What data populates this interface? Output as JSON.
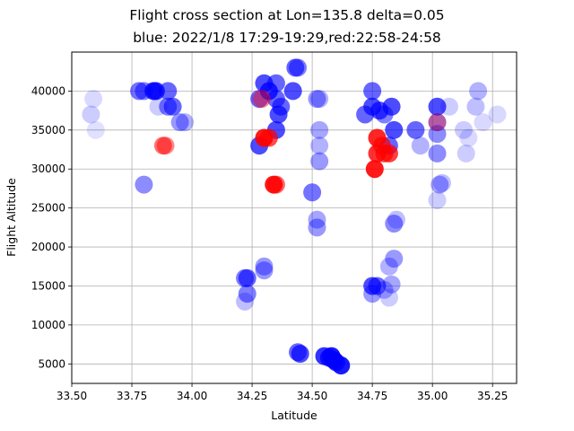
{
  "chart_data": {
    "type": "scatter",
    "title": "Flight cross section at Lon=135.8 delta=0.05",
    "subtitle": "blue: 2022/1/8 17:29-19:29,red:22:58-24:58",
    "xlabel": "Latitude",
    "ylabel": "Flight Altitude",
    "xlim": [
      33.5,
      35.35
    ],
    "ylim": [
      2500,
      45000
    ],
    "xticks": [
      "33.50",
      "33.75",
      "34.00",
      "34.25",
      "34.50",
      "34.75",
      "35.00",
      "35.25"
    ],
    "yticks": [
      "5000",
      "10000",
      "15000",
      "20000",
      "25000",
      "30000",
      "35000",
      "40000"
    ],
    "grid": true,
    "colors": {
      "blue": "#0000ff",
      "red": "#ff0000"
    },
    "series": [
      {
        "color": "#0000ff",
        "points": [
          [
            33.59,
            39000,
            0.15
          ],
          [
            33.58,
            37000,
            0.2
          ],
          [
            33.6,
            35000,
            0.12
          ],
          [
            33.78,
            40000,
            0.55
          ],
          [
            33.8,
            40000,
            0.5
          ],
          [
            33.84,
            40000,
            0.8
          ],
          [
            33.85,
            40000,
            0.8
          ],
          [
            33.9,
            40000,
            0.6
          ],
          [
            33.86,
            38000,
            0.2
          ],
          [
            33.9,
            38000,
            0.5
          ],
          [
            33.92,
            38000,
            0.6
          ],
          [
            33.95,
            36000,
            0.4
          ],
          [
            33.97,
            36000,
            0.3
          ],
          [
            33.8,
            28000,
            0.45
          ],
          [
            34.28,
            39000,
            0.6
          ],
          [
            34.3,
            41000,
            0.7
          ],
          [
            34.32,
            40000,
            0.8
          ],
          [
            34.35,
            41000,
            0.6
          ],
          [
            34.35,
            39000,
            0.6
          ],
          [
            34.36,
            37000,
            0.7
          ],
          [
            34.37,
            38000,
            0.6
          ],
          [
            34.42,
            40000,
            0.7
          ],
          [
            34.43,
            43000,
            0.6
          ],
          [
            34.44,
            43000,
            0.5
          ],
          [
            34.35,
            35000,
            0.7
          ],
          [
            34.28,
            33000,
            0.7
          ],
          [
            34.52,
            39000,
            0.4
          ],
          [
            34.53,
            39000,
            0.3
          ],
          [
            34.53,
            35000,
            0.35
          ],
          [
            34.53,
            33000,
            0.3
          ],
          [
            34.53,
            31000,
            0.4
          ],
          [
            34.5,
            27000,
            0.55
          ],
          [
            34.52,
            23500,
            0.35
          ],
          [
            34.52,
            22500,
            0.4
          ],
          [
            34.22,
            16000,
            0.5
          ],
          [
            34.23,
            16000,
            0.6
          ],
          [
            34.3,
            17500,
            0.4
          ],
          [
            34.3,
            17000,
            0.4
          ],
          [
            34.23,
            14000,
            0.5
          ],
          [
            34.22,
            13000,
            0.25
          ],
          [
            34.44,
            6500,
            0.6
          ],
          [
            34.45,
            6300,
            0.7
          ],
          [
            34.55,
            6000,
            0.8
          ],
          [
            34.57,
            5800,
            0.8
          ],
          [
            34.58,
            6000,
            0.9
          ],
          [
            34.6,
            5200,
            0.8
          ],
          [
            34.62,
            4800,
            0.9
          ],
          [
            34.59,
            5500,
            0.9
          ],
          [
            34.72,
            37000,
            0.6
          ],
          [
            34.75,
            40000,
            0.6
          ],
          [
            34.75,
            38000,
            0.7
          ],
          [
            34.78,
            37500,
            0.7
          ],
          [
            34.8,
            37000,
            0.5
          ],
          [
            34.83,
            38000,
            0.7
          ],
          [
            34.84,
            35000,
            0.7
          ],
          [
            34.82,
            33000,
            0.6
          ],
          [
            34.75,
            15000,
            0.7
          ],
          [
            34.77,
            15000,
            0.6
          ],
          [
            34.75,
            14000,
            0.4
          ],
          [
            34.8,
            14500,
            0.3
          ],
          [
            34.82,
            13500,
            0.2
          ],
          [
            34.83,
            15200,
            0.35
          ],
          [
            34.82,
            17500,
            0.3
          ],
          [
            34.84,
            18500,
            0.4
          ],
          [
            34.84,
            23000,
            0.45
          ],
          [
            34.85,
            23500,
            0.25
          ],
          [
            34.93,
            35000,
            0.6
          ],
          [
            34.95,
            33000,
            0.3
          ],
          [
            35.02,
            38000,
            0.7
          ],
          [
            35.02,
            36000,
            0.45
          ],
          [
            35.02,
            34500,
            0.45
          ],
          [
            35.02,
            32000,
            0.45
          ],
          [
            35.03,
            28000,
            0.35
          ],
          [
            35.04,
            28200,
            0.25
          ],
          [
            35.02,
            26000,
            0.2
          ],
          [
            35.07,
            38000,
            0.2
          ],
          [
            35.13,
            35000,
            0.2
          ],
          [
            35.15,
            34000,
            0.15
          ],
          [
            35.14,
            32000,
            0.2
          ],
          [
            35.18,
            38000,
            0.25
          ],
          [
            35.19,
            40000,
            0.3
          ],
          [
            35.21,
            36000,
            0.15
          ],
          [
            35.27,
            37000,
            0.15
          ]
        ]
      },
      {
        "color": "#ff0000",
        "points": [
          [
            33.88,
            33000,
            0.55
          ],
          [
            33.89,
            33000,
            0.45
          ],
          [
            34.29,
            39000,
            0.45
          ],
          [
            34.3,
            34000,
            0.9
          ],
          [
            34.32,
            34000,
            0.7
          ],
          [
            34.34,
            28000,
            0.9
          ],
          [
            34.35,
            28000,
            0.6
          ],
          [
            34.77,
            34000,
            0.85
          ],
          [
            34.79,
            33000,
            0.7
          ],
          [
            34.77,
            32000,
            0.8
          ],
          [
            34.76,
            30000,
            0.9
          ],
          [
            34.8,
            32000,
            0.7
          ],
          [
            34.82,
            32000,
            0.75
          ],
          [
            35.02,
            36000,
            0.35
          ]
        ]
      }
    ]
  }
}
